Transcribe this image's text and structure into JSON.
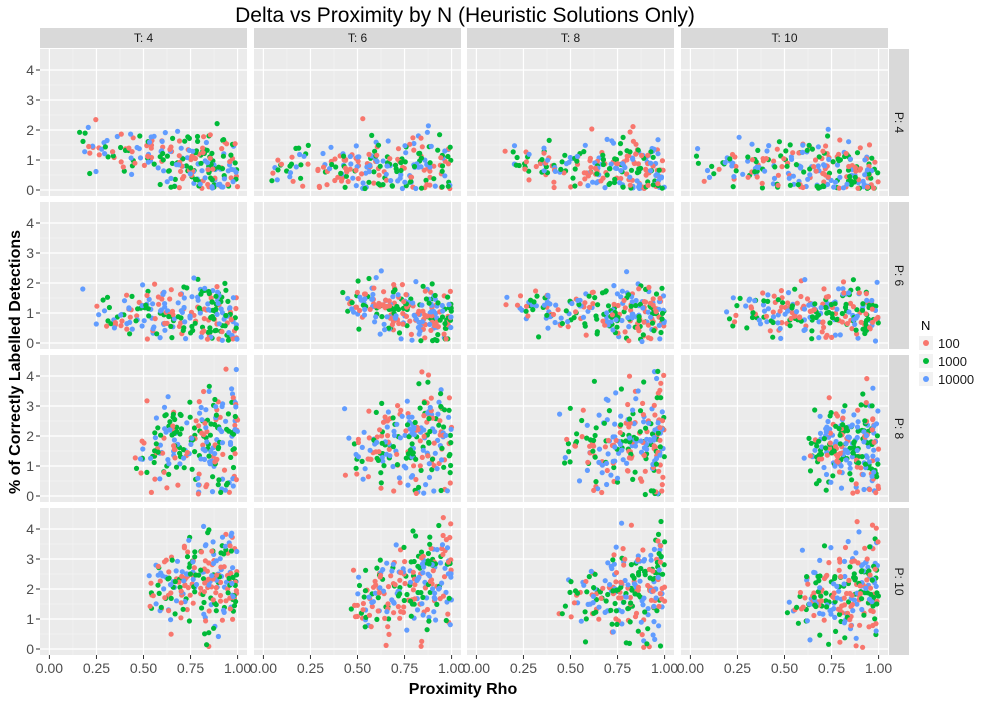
{
  "chart_data": {
    "type": "scatter",
    "title": "Delta vs Proximity by N (Heuristic Solutions Only)",
    "xlabel": "Proximity Rho",
    "ylabel": "% of Correctly Labelled Detections",
    "xlim": [
      -0.05,
      1.05
    ],
    "ylim": [
      -0.2,
      4.7
    ],
    "x_ticks": [
      "0.00",
      "0.25",
      "0.50",
      "0.75",
      "1.00"
    ],
    "x_tick_values": [
      0,
      0.25,
      0.5,
      0.75,
      1.0
    ],
    "y_ticks": [
      "0",
      "1",
      "2",
      "3",
      "4"
    ],
    "y_tick_values": [
      0,
      1,
      2,
      3,
      4
    ],
    "grid": true,
    "facet_columns": [
      "T: 4",
      "T: 6",
      "T: 8",
      "T: 10"
    ],
    "facet_rows": [
      "P: 4",
      "P: 6",
      "P: 8",
      "P: 10"
    ],
    "legend": {
      "title": "N",
      "placement": "right",
      "entries": [
        {
          "label": "100",
          "color": "#F8766D"
        },
        {
          "label": "1000",
          "color": "#00BA38"
        },
        {
          "label": "10000",
          "color": "#619CFF"
        }
      ]
    },
    "panels": [
      {
        "row": "P: 4",
        "col": "T: 4",
        "x_range": [
          0.13,
          1.0
        ],
        "y_center": [
          1.65,
          0.6
        ],
        "y_spread": 0.55
      },
      {
        "row": "P: 4",
        "col": "T: 6",
        "x_range": [
          0.0,
          1.0
        ],
        "y_center": [
          0.75,
          0.8
        ],
        "y_spread": 0.5
      },
      {
        "row": "P: 4",
        "col": "T: 8",
        "x_range": [
          0.15,
          1.0
        ],
        "y_center": [
          1.05,
          0.55
        ],
        "y_spread": 0.45
      },
      {
        "row": "P: 4",
        "col": "T: 10",
        "x_range": [
          0.02,
          1.0
        ],
        "y_center": [
          0.8,
          0.6
        ],
        "y_spread": 0.55
      },
      {
        "row": "P: 6",
        "col": "T: 4",
        "x_range": [
          0.15,
          1.0
        ],
        "y_center": [
          1.35,
          0.85
        ],
        "y_spread": 0.55
      },
      {
        "row": "P: 6",
        "col": "T: 6",
        "x_range": [
          0.4,
          1.0
        ],
        "y_center": [
          1.4,
          0.9
        ],
        "y_spread": 0.45
      },
      {
        "row": "P: 6",
        "col": "T: 8",
        "x_range": [
          0.15,
          1.0
        ],
        "y_center": [
          1.2,
          0.95
        ],
        "y_spread": 0.45
      },
      {
        "row": "P: 6",
        "col": "T: 10",
        "x_range": [
          0.15,
          1.0
        ],
        "y_center": [
          1.05,
          1.0
        ],
        "y_spread": 0.45
      },
      {
        "row": "P: 8",
        "col": "T: 4",
        "x_range": [
          0.45,
          1.0
        ],
        "y_center": [
          1.5,
          2.1
        ],
        "y_spread": 0.85
      },
      {
        "row": "P: 8",
        "col": "T: 6",
        "x_range": [
          0.42,
          1.0
        ],
        "y_center": [
          1.5,
          2.0
        ],
        "y_spread": 0.85
      },
      {
        "row": "P: 8",
        "col": "T: 8",
        "x_range": [
          0.42,
          1.0
        ],
        "y_center": [
          1.5,
          1.9
        ],
        "y_spread": 0.85
      },
      {
        "row": "P: 8",
        "col": "T: 10",
        "x_range": [
          0.57,
          1.0
        ],
        "y_center": [
          1.6,
          1.8
        ],
        "y_spread": 0.75
      },
      {
        "row": "P: 10",
        "col": "T: 4",
        "x_range": [
          0.5,
          1.0
        ],
        "y_center": [
          1.9,
          2.4
        ],
        "y_spread": 0.8
      },
      {
        "row": "P: 10",
        "col": "T: 6",
        "x_range": [
          0.45,
          1.0
        ],
        "y_center": [
          1.5,
          2.5
        ],
        "y_spread": 0.8
      },
      {
        "row": "P: 10",
        "col": "T: 8",
        "x_range": [
          0.43,
          1.0
        ],
        "y_center": [
          1.6,
          2.2
        ],
        "y_spread": 0.8
      },
      {
        "row": "P: 10",
        "col": "T: 10",
        "x_range": [
          0.5,
          1.0
        ],
        "y_center": [
          1.4,
          2.2
        ],
        "y_spread": 0.8
      }
    ]
  }
}
